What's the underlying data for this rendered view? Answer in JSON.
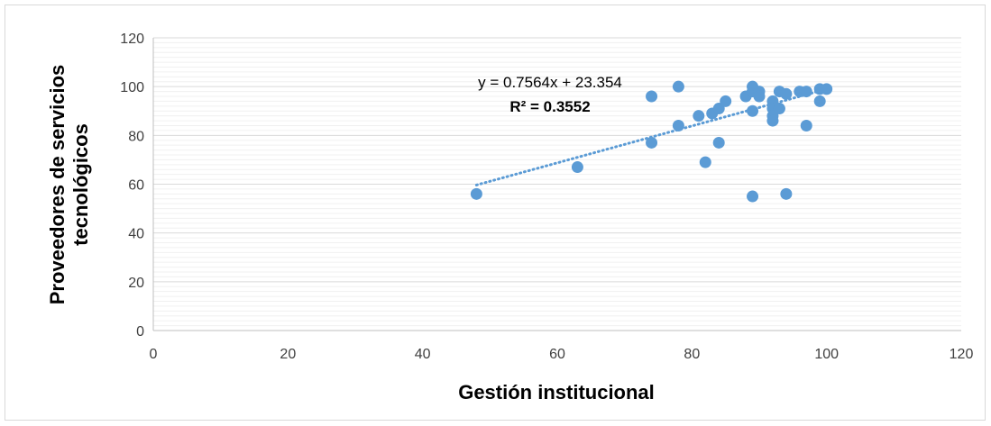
{
  "chart_data": {
    "type": "scatter",
    "title": "",
    "xlabel": "Gestión institucional",
    "ylabel_lines": [
      "Proveedores de servicios",
      "tecnológicos"
    ],
    "xlim": [
      0,
      120
    ],
    "ylim": [
      0,
      120
    ],
    "x_ticks": [
      0,
      20,
      40,
      60,
      80,
      100,
      120
    ],
    "y_ticks": [
      0,
      20,
      40,
      60,
      80,
      100,
      120
    ],
    "grid": "horizontal",
    "legend": "none",
    "series": [
      {
        "color": "#5b9bd5",
        "points": [
          [
            48,
            56
          ],
          [
            63,
            67
          ],
          [
            74,
            96
          ],
          [
            74,
            77
          ],
          [
            78,
            100
          ],
          [
            78,
            84
          ],
          [
            81,
            88
          ],
          [
            82,
            69
          ],
          [
            83,
            89
          ],
          [
            84,
            91
          ],
          [
            84,
            77
          ],
          [
            85,
            94
          ],
          [
            88,
            96
          ],
          [
            89,
            100
          ],
          [
            89,
            98
          ],
          [
            89,
            90
          ],
          [
            89,
            55
          ],
          [
            90,
            98
          ],
          [
            90,
            96
          ],
          [
            92,
            94
          ],
          [
            92,
            91
          ],
          [
            92,
            88
          ],
          [
            92,
            86
          ],
          [
            93,
            98
          ],
          [
            93,
            91
          ],
          [
            94,
            97
          ],
          [
            94,
            56
          ],
          [
            96,
            98
          ],
          [
            97,
            98
          ],
          [
            97,
            84
          ],
          [
            99,
            99
          ],
          [
            99,
            94
          ],
          [
            100,
            99
          ]
        ]
      }
    ],
    "trendline": {
      "type": "linear",
      "slope": 0.7564,
      "intercept": 23.354,
      "x_range": [
        48,
        100
      ],
      "style": "dotted",
      "color": "#5b9bd5",
      "equation_label": "y = 0.7564x + 23.354",
      "r2_label": "R² = 0.3552"
    }
  }
}
